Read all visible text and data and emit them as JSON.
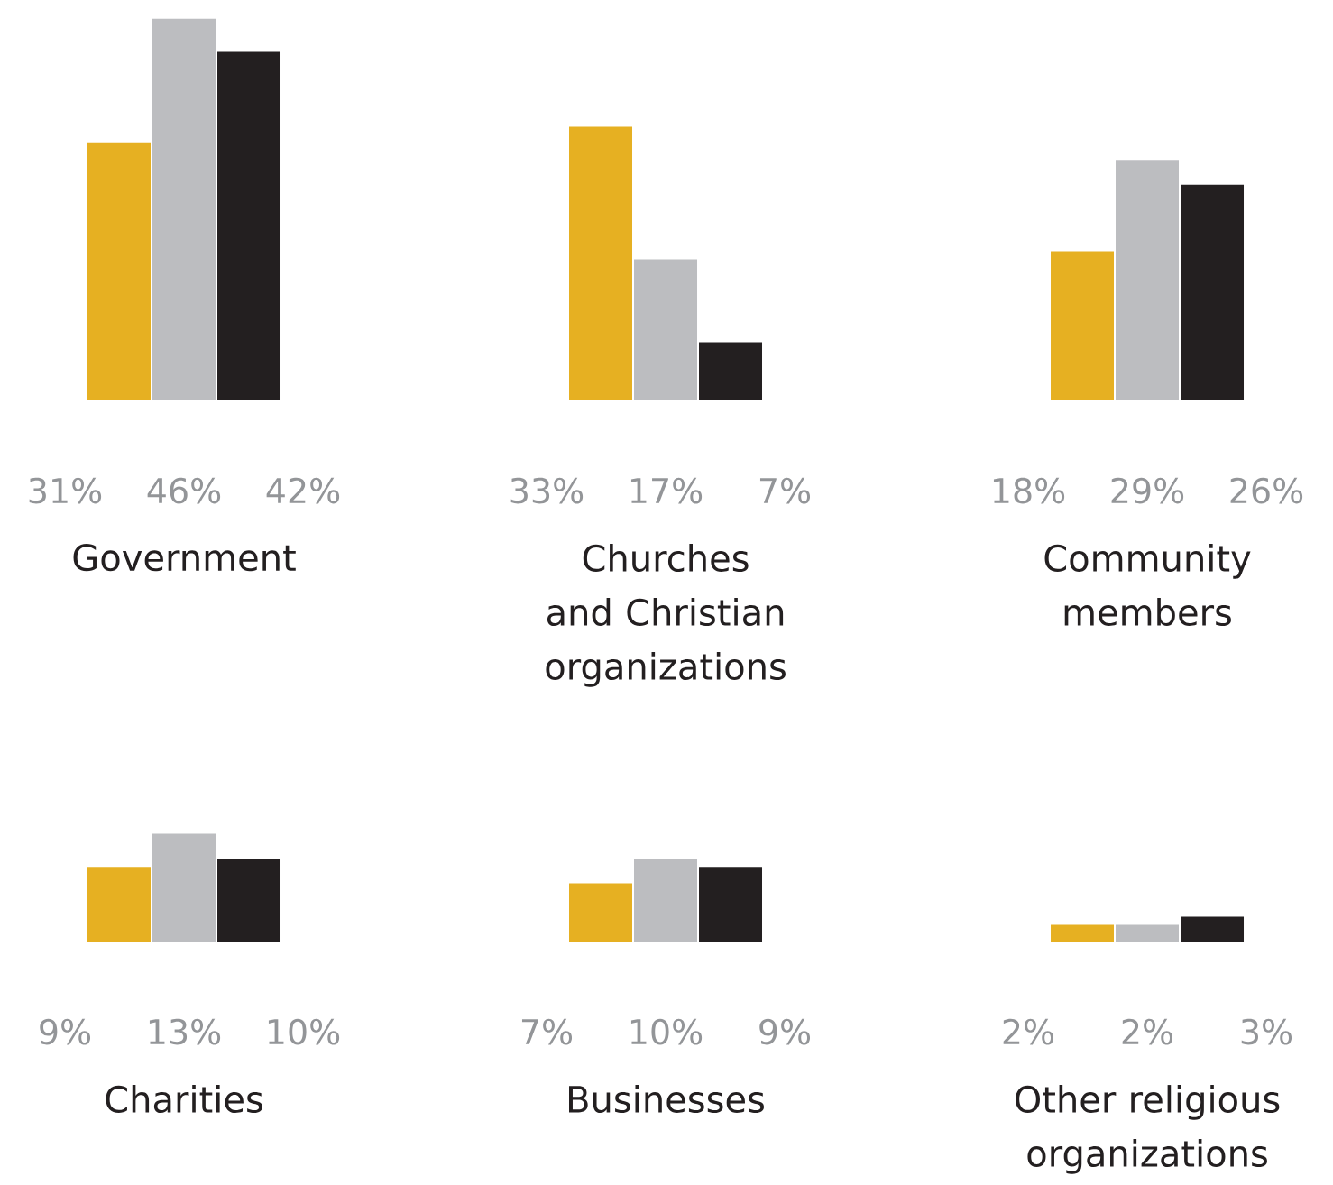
{
  "chart_data": [
    {
      "type": "bar",
      "categories": [
        null,
        null,
        null
      ],
      "values": [
        31,
        46,
        42
      ],
      "colors": [
        "#e6b022",
        "#bcbdc0",
        "#231f20"
      ],
      "value_labels": [
        "31%",
        "46%",
        "42%"
      ],
      "xlabel": "Government"
    },
    {
      "type": "bar",
      "categories": [
        null,
        null,
        null
      ],
      "values": [
        33,
        17,
        7
      ],
      "colors": [
        "#e6b022",
        "#bcbdc0",
        "#231f20"
      ],
      "value_labels": [
        "33%",
        "17%",
        "7%"
      ],
      "xlabel": "Churches and Christian organizations"
    },
    {
      "type": "bar",
      "categories": [
        null,
        null,
        null
      ],
      "values": [
        18,
        29,
        26
      ],
      "colors": [
        "#e6b022",
        "#bcbdc0",
        "#231f20"
      ],
      "value_labels": [
        "18%",
        "29%",
        "26%"
      ],
      "xlabel": "Community members"
    },
    {
      "type": "bar",
      "categories": [
        null,
        null,
        null
      ],
      "values": [
        9,
        13,
        10
      ],
      "colors": [
        "#e6b022",
        "#bcbdc0",
        "#231f20"
      ],
      "value_labels": [
        "9%",
        "13%",
        "10%"
      ],
      "xlabel": "Charities"
    },
    {
      "type": "bar",
      "categories": [
        null,
        null,
        null
      ],
      "values": [
        7,
        10,
        9
      ],
      "colors": [
        "#e6b022",
        "#bcbdc0",
        "#231f20"
      ],
      "value_labels": [
        "7%",
        "10%",
        "9%"
      ],
      "xlabel": "Businesses"
    },
    {
      "type": "bar",
      "categories": [
        null,
        null,
        null
      ],
      "values": [
        2,
        2,
        3
      ],
      "colors": [
        "#e6b022",
        "#bcbdc0",
        "#231f20"
      ],
      "value_labels": [
        "2%",
        "2%",
        "3%"
      ],
      "xlabel": "Other religious organizations"
    }
  ]
}
